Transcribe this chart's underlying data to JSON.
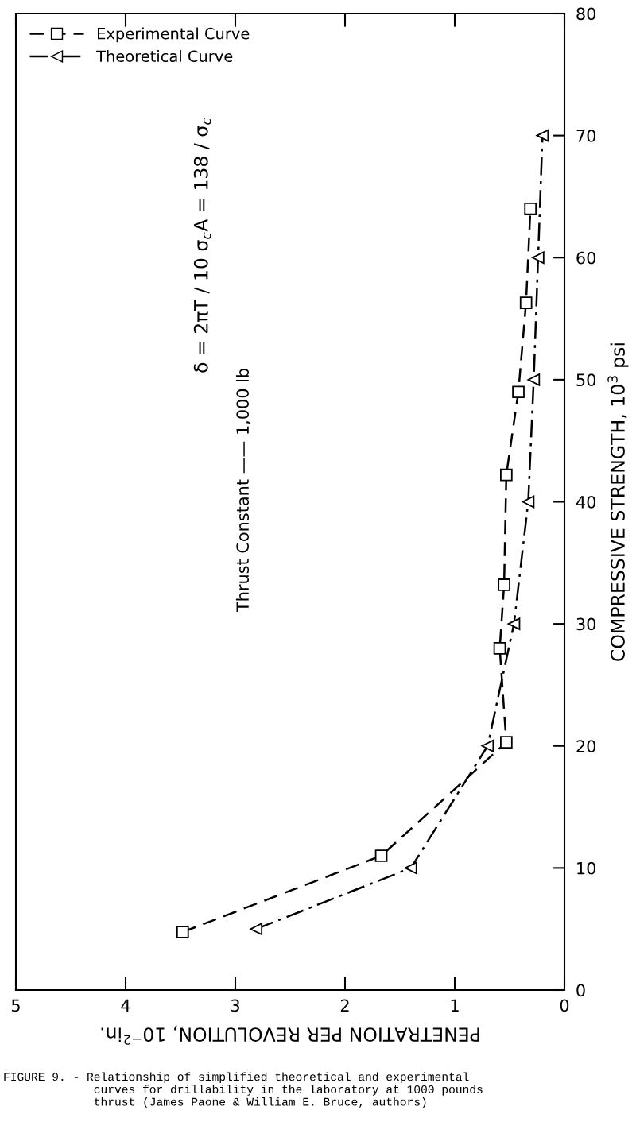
{
  "chart_data": {
    "type": "line",
    "xlabel": "PENETRATION PER REVOLUTION, 10$^{−2}$in.",
    "ylabel": "COMPRESSIVE STRENGTH, 10$^{3}$ psi",
    "xlim": [
      5,
      0
    ],
    "xticks": [
      0,
      1,
      2,
      3,
      4,
      5
    ],
    "ylim": [
      0,
      80
    ],
    "yticks": [
      0,
      10,
      20,
      30,
      40,
      50,
      60,
      70,
      80
    ],
    "grid": false,
    "legend": "top left",
    "series": [
      {
        "name": "Experimental Curve",
        "color": "#000000",
        "marker": "square",
        "line_style": "dashed",
        "x": [
          3.48,
          1.67,
          0.53,
          0.59,
          0.55,
          0.53,
          0.42,
          0.35,
          0.31
        ],
        "values": [
          4.75,
          11.0,
          20.3,
          28.0,
          33.2,
          42.2,
          49.0,
          56.3,
          64.0
        ]
      },
      {
        "name": "Theoretical Curve",
        "color": "#000000",
        "marker": "triangle",
        "line_style": "dashdot",
        "x": [
          2.81,
          1.4,
          0.7,
          0.46,
          0.33,
          0.28,
          0.24,
          0.2
        ],
        "values": [
          5,
          10,
          20,
          30,
          40,
          50,
          60,
          70
        ]
      }
    ],
    "annotations": [
      "δ = 2πT / 10 σ$_{c}$A = 138 / σ$_{c}$",
      "Thrust Constant —— 1,000 lb",
      "FIGURE 9. - Relationship of simplified theoretical and experimental\n             curves for drillability in the laboratory at 1000 pounds\n             thrust (James Paone & William E. Bruce, authors)"
    ]
  }
}
